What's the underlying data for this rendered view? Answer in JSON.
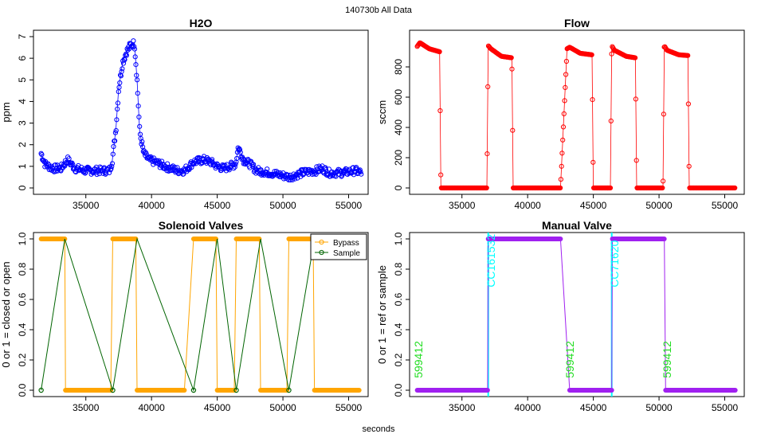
{
  "header": {
    "title": "140730b   All Data",
    "xlabel": "seconds"
  },
  "colors": {
    "h2o": "#0000ff",
    "flow": "#ff0000",
    "bypass": "#ffa500",
    "sample": "#006400",
    "manual": "#a020f0",
    "cyl": "#00ffff",
    "ref": "#22dd22"
  },
  "chart_data": [
    {
      "type": "scatter",
      "title": "H2O",
      "ylabel": "ppm",
      "xlabel": "",
      "xlim": [
        31500,
        56000
      ],
      "ylim": [
        0,
        7
      ],
      "xticks": [
        35000,
        40000,
        45000,
        50000,
        55000
      ],
      "yticks": [
        0,
        1,
        2,
        3,
        4,
        5,
        6,
        7
      ],
      "series": [
        {
          "name": "H2O",
          "color": "#0000ff",
          "x": [
            31600,
            31900,
            32500,
            33100,
            33600,
            34200,
            35000,
            36000,
            36800,
            37000,
            37300,
            37500,
            37800,
            38100,
            38400,
            38700,
            38900,
            39100,
            39400,
            39800,
            40300,
            41000,
            42000,
            42500,
            43200,
            44000,
            44500,
            45000,
            45500,
            46400,
            46600,
            47000,
            47500,
            48000,
            49000,
            49800,
            50500,
            51500,
            52500,
            53000,
            53500,
            54500,
            55500,
            56000
          ],
          "y": [
            1.6,
            1.1,
            0.9,
            0.9,
            1.3,
            0.9,
            0.8,
            0.8,
            0.8,
            1.2,
            2.8,
            4.6,
            5.8,
            6.3,
            6.6,
            6.7,
            5.0,
            2.6,
            1.6,
            1.3,
            1.2,
            1.0,
            0.8,
            0.8,
            1.2,
            1.3,
            1.2,
            1.0,
            0.9,
            1.1,
            1.9,
            1.3,
            1.1,
            0.8,
            0.7,
            0.6,
            0.5,
            0.7,
            0.8,
            0.9,
            0.7,
            0.7,
            0.8,
            0.7
          ]
        }
      ]
    },
    {
      "type": "scatter",
      "title": "Flow",
      "ylabel": "sccm",
      "xlabel": "",
      "xlim": [
        31500,
        56000
      ],
      "ylim": [
        0,
        1000
      ],
      "xticks": [
        35000,
        40000,
        45000,
        50000,
        55000
      ],
      "yticks": [
        0,
        200,
        400,
        600,
        800
      ],
      "series": [
        {
          "name": "Flow",
          "color": "#ff0000",
          "x": [
            31600,
            31800,
            32500,
            33300,
            33400,
            35000,
            36900,
            37000,
            37200,
            38000,
            38800,
            38900,
            40500,
            42500,
            43000,
            43200,
            44000,
            44900,
            45000,
            46300,
            46400,
            46600,
            47500,
            48200,
            48300,
            50300,
            50400,
            50600,
            51500,
            52200,
            52300,
            54000,
            55800
          ],
          "y": [
            935,
            960,
            920,
            900,
            0,
            0,
            0,
            940,
            920,
            870,
            860,
            0,
            0,
            0,
            920,
            930,
            890,
            880,
            0,
            0,
            940,
            910,
            870,
            860,
            0,
            0,
            940,
            910,
            880,
            875,
            0,
            0,
            0
          ]
        }
      ]
    },
    {
      "type": "line",
      "title": "Solenoid Valves",
      "ylabel": "0 or 1 = closed or open",
      "xlabel": "",
      "xlim": [
        31500,
        56000
      ],
      "ylim": [
        0,
        1
      ],
      "xticks": [
        35000,
        40000,
        45000,
        50000,
        55000
      ],
      "yticks": [
        0.0,
        0.2,
        0.4,
        0.6,
        0.8,
        1.0
      ],
      "legend": {
        "position": "top-right",
        "entries": [
          "Bypass",
          "Sample"
        ]
      },
      "series": [
        {
          "name": "Bypass",
          "color": "#ffa500",
          "x": [
            31600,
            33400,
            33450,
            36900,
            37050,
            38800,
            38900,
            42500,
            43200,
            44900,
            45000,
            46300,
            46450,
            48200,
            48300,
            50300,
            50450,
            52300,
            52400,
            55800
          ],
          "y": [
            1,
            1,
            0,
            0,
            1,
            1,
            0,
            0,
            1,
            1,
            0,
            0,
            1,
            1,
            0,
            0,
            1,
            1,
            0,
            0
          ]
        },
        {
          "name": "Sample",
          "color": "#006400",
          "x": [
            31600,
            33400,
            37050,
            38900,
            43200,
            45000,
            46450,
            48300,
            50450,
            52400
          ],
          "y": [
            0,
            1,
            0,
            1,
            0,
            1,
            0,
            1,
            0,
            1
          ]
        }
      ]
    },
    {
      "type": "line",
      "title": "Manual Valve",
      "ylabel": "0 or 1 = ref or sample",
      "xlabel": "",
      "xlim": [
        31500,
        56000
      ],
      "ylim": [
        0,
        1
      ],
      "xticks": [
        35000,
        40000,
        45000,
        50000,
        55000
      ],
      "yticks": [
        0.0,
        0.2,
        0.4,
        0.6,
        0.8,
        1.0
      ],
      "series": [
        {
          "name": "Manual Valve",
          "color": "#a020f0",
          "x": [
            31600,
            36950,
            37000,
            42500,
            43200,
            46400,
            46450,
            50400,
            50500,
            55800
          ],
          "y": [
            0,
            0,
            1,
            1,
            0,
            0,
            1,
            1,
            0,
            0
          ]
        }
      ],
      "annotations": [
        {
          "text": "599412",
          "x": 32000,
          "y": 0.08,
          "color": "#22dd22"
        },
        {
          "text": "CC161532",
          "x": 37500,
          "y": 0.68,
          "color": "#00ffff"
        },
        {
          "text": "599412",
          "x": 43500,
          "y": 0.08,
          "color": "#22dd22"
        },
        {
          "text": "CC71620",
          "x": 46900,
          "y": 0.68,
          "color": "#00ffff"
        },
        {
          "text": "599412",
          "x": 50900,
          "y": 0.08,
          "color": "#22dd22"
        }
      ],
      "vlines": [
        {
          "x": 37000,
          "color": "#00ffff"
        },
        {
          "x": 46400,
          "color": "#00ffff"
        }
      ]
    }
  ]
}
